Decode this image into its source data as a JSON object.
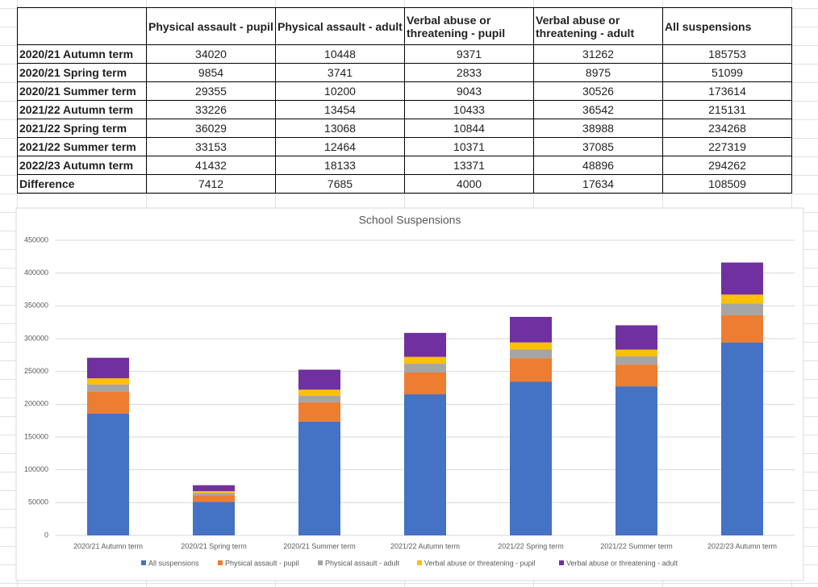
{
  "table": {
    "headers": [
      "Physical assault - pupil",
      "Physical assault - adult",
      "Verbal abuse or threatening - pupil",
      "Verbal abuse or threatening - adult",
      "All suspensions"
    ],
    "rows": [
      {
        "label": "2020/21 Autumn term",
        "values": [
          34020,
          10448,
          9371,
          31262,
          185753
        ]
      },
      {
        "label": "2020/21 Spring term",
        "values": [
          9854,
          3741,
          2833,
          8975,
          51099
        ]
      },
      {
        "label": "2020/21 Summer term",
        "values": [
          29355,
          10200,
          9043,
          30526,
          173614
        ]
      },
      {
        "label": "2021/22 Autumn term",
        "values": [
          33226,
          13454,
          10433,
          36542,
          215131
        ]
      },
      {
        "label": "2021/22 Spring term",
        "values": [
          36029,
          13068,
          10844,
          38988,
          234268
        ]
      },
      {
        "label": "2021/22 Summer term",
        "values": [
          33153,
          12464,
          10371,
          37085,
          227319
        ]
      },
      {
        "label": "2022/23 Autumn term",
        "values": [
          41432,
          18133,
          13371,
          48896,
          294262
        ]
      },
      {
        "label": "Difference",
        "values": [
          7412,
          7685,
          4000,
          17634,
          108509
        ]
      }
    ]
  },
  "chart_data": {
    "type": "stacked_bar",
    "title": "School Suspensions",
    "categories": [
      "2020/21 Autumn term",
      "2020/21 Spring term",
      "2020/21 Summer term",
      "2021/22 Autumn term",
      "2021/22 Spring term",
      "2021/22 Summer term",
      "2022/23 Autumn term"
    ],
    "series": [
      {
        "name": "All suspensions",
        "color": "#4472c4",
        "values": [
          185753,
          51099,
          173614,
          215131,
          234268,
          227319,
          294262
        ]
      },
      {
        "name": "Physical assault - pupil",
        "color": "#ed7d31",
        "values": [
          34020,
          9854,
          29355,
          33226,
          36029,
          33153,
          41432
        ]
      },
      {
        "name": "Physical assault - adult",
        "color": "#a5a5a5",
        "values": [
          10448,
          3741,
          10200,
          13454,
          13068,
          12464,
          18133
        ]
      },
      {
        "name": "Verbal abuse or threatening - pupil",
        "color": "#ffc000",
        "values": [
          9371,
          2833,
          9043,
          10433,
          10844,
          10371,
          13371
        ]
      },
      {
        "name": "Verbal abuse or threatening - adult",
        "color": "#7030a0",
        "values": [
          31262,
          8975,
          30526,
          36542,
          38988,
          37085,
          48896
        ]
      }
    ],
    "ylim": [
      0,
      450000
    ],
    "yticks": [
      0,
      50000,
      100000,
      150000,
      200000,
      250000,
      300000,
      350000,
      400000,
      450000
    ],
    "grid": true,
    "legend": "bottom"
  }
}
